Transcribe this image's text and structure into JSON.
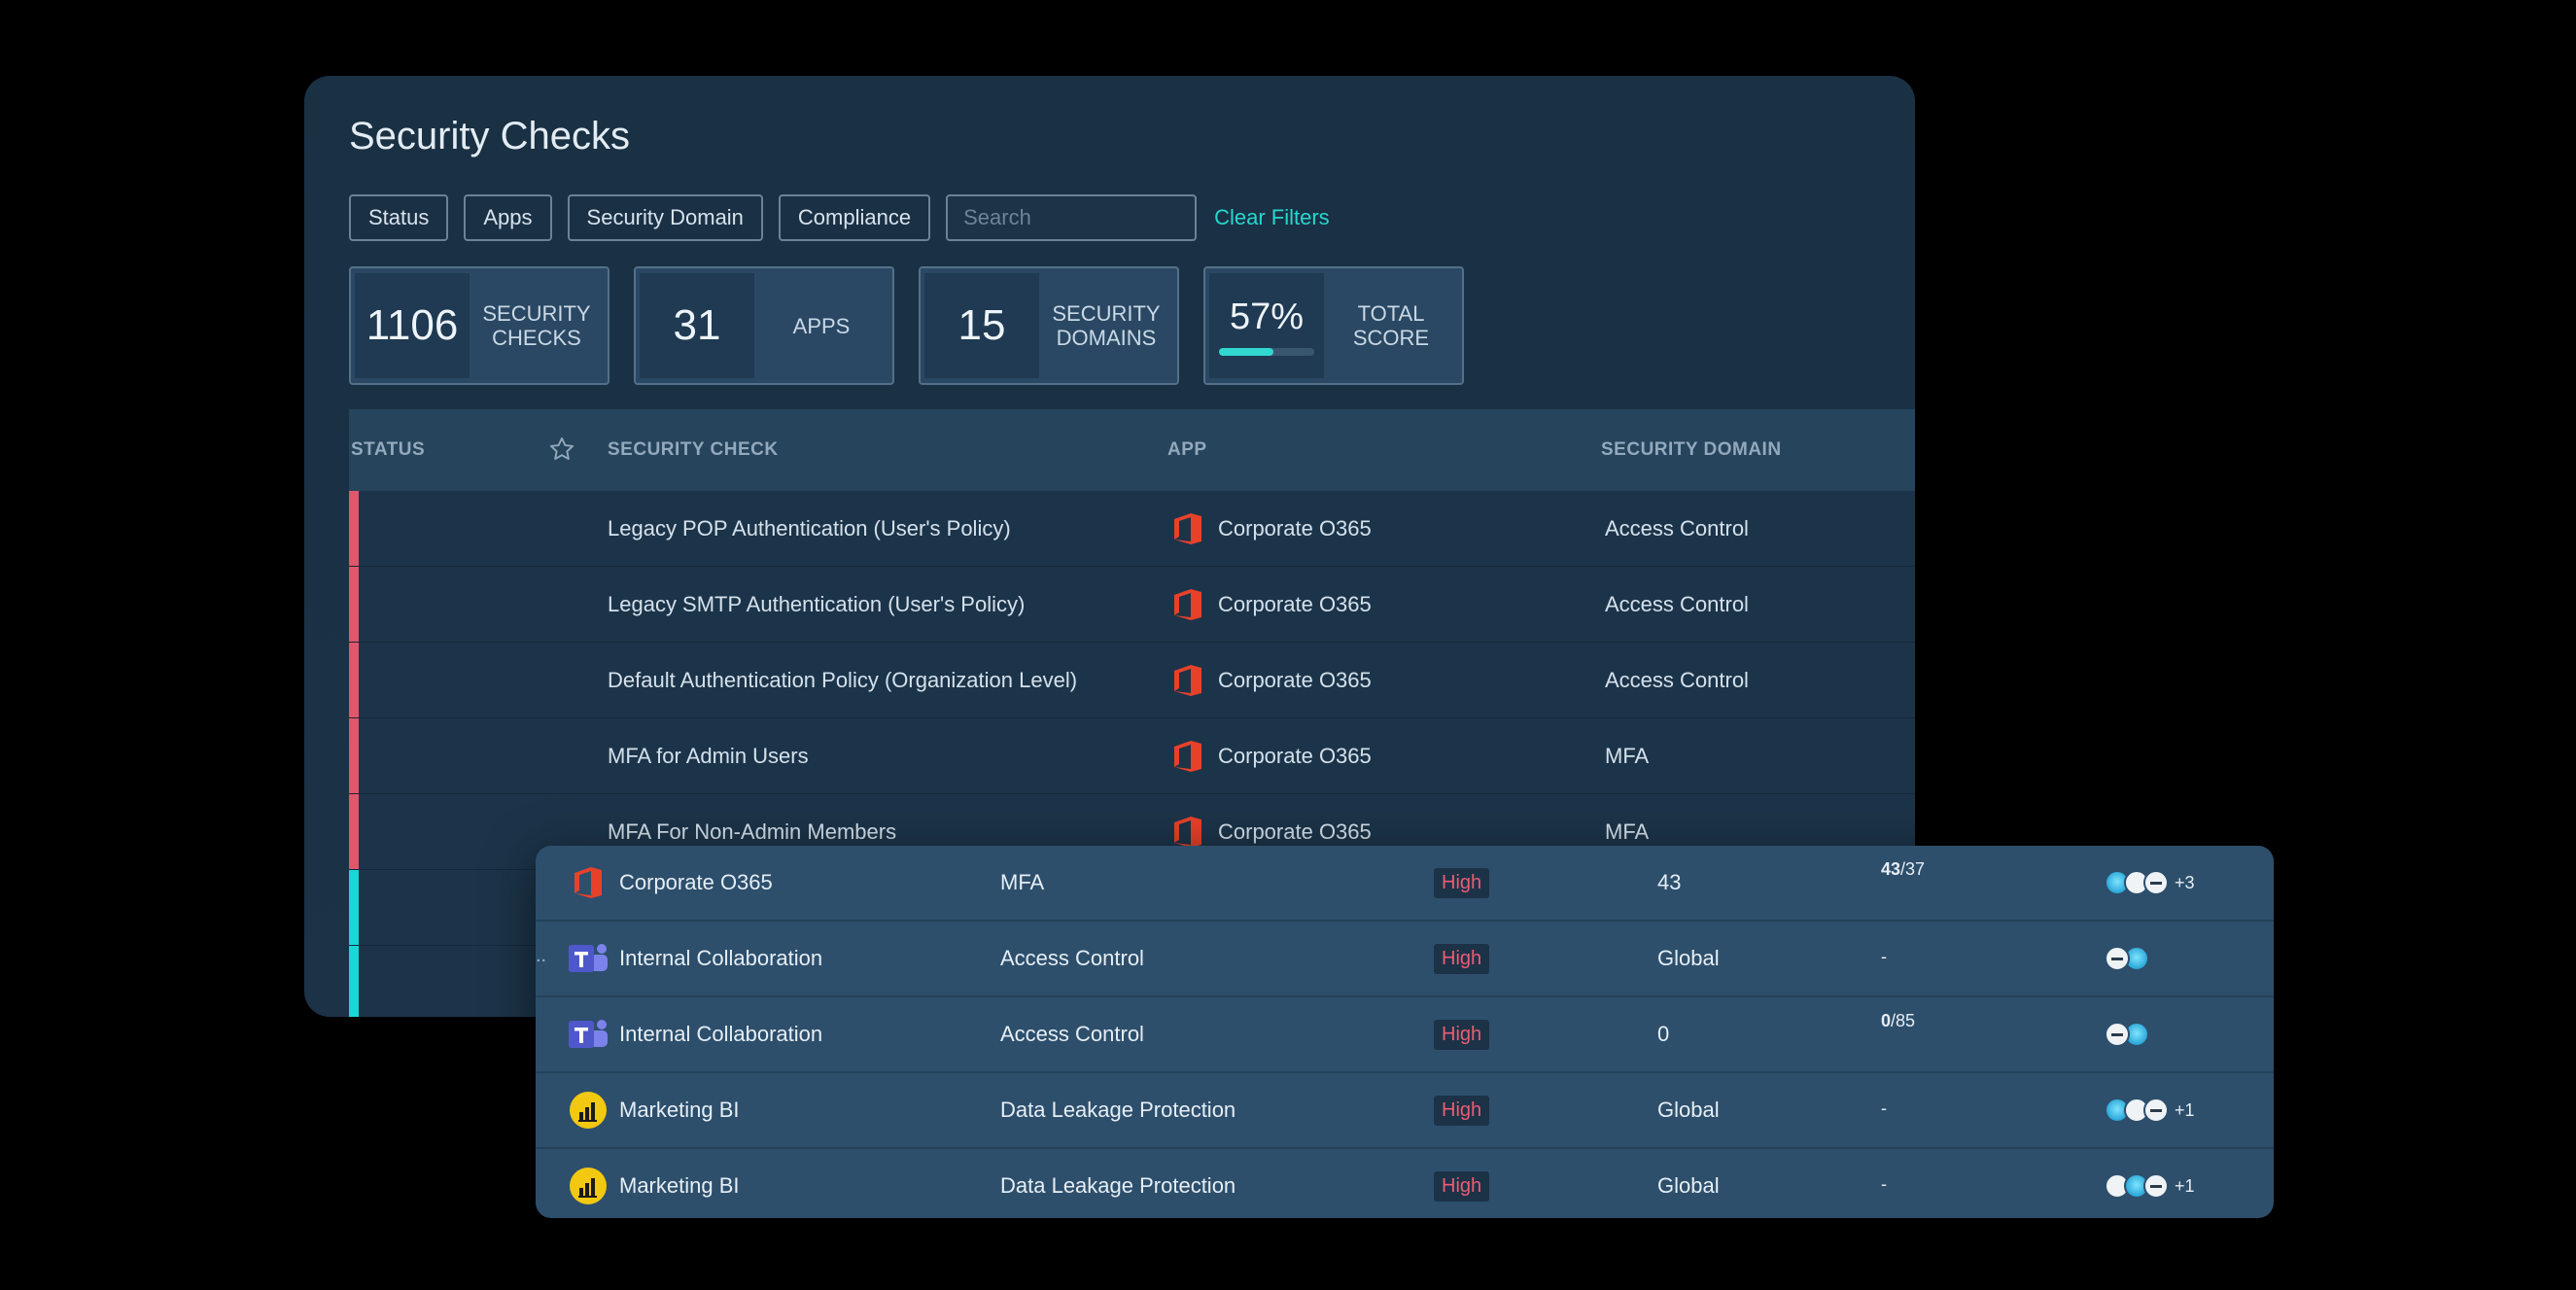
{
  "title": "Security Checks",
  "filters": [
    "Status",
    "Apps",
    "Security Domain",
    "Compliance"
  ],
  "search_placeholder": "Search",
  "clear_filters": "Clear Filters",
  "stats": [
    {
      "value": "1106",
      "label_line1": "SECURITY",
      "label_line2": "CHECKS"
    },
    {
      "value": "31",
      "label_line1": "APPS",
      "label_line2": ""
    },
    {
      "value": "15",
      "label_line1": "SECURITY",
      "label_line2": "DOMAINS"
    },
    {
      "value": "57%",
      "label_line1": "TOTAL",
      "label_line2": "SCORE",
      "progress": 0.57
    }
  ],
  "table": {
    "headers": {
      "status": "STATUS",
      "check": "SECURITY CHECK",
      "app": "APP",
      "domain": "SECURITY DOMAIN"
    },
    "rows": [
      {
        "check": "Legacy POP Authentication (User's Policy)",
        "app": "Corporate O365",
        "domain": "Access Control",
        "status_color": "#e0566a"
      },
      {
        "check": "Legacy SMTP Authentication (User's Policy)",
        "app": "Corporate O365",
        "domain": "Access Control",
        "status_color": "#e0566a"
      },
      {
        "check": "Default Authentication Policy (Organization Level)",
        "app": "Corporate O365",
        "domain": "Access Control",
        "status_color": "#e0566a"
      },
      {
        "check": "MFA for Admin Users",
        "app": "Corporate O365",
        "domain": "MFA",
        "status_color": "#e0566a"
      },
      {
        "check": "MFA For Non-Admin Members",
        "app": "Corporate O365",
        "domain": "MFA",
        "status_color": "#e0566a"
      },
      {
        "check": "",
        "app": "",
        "domain": "",
        "status_color": "#18d7d6"
      },
      {
        "check": "",
        "app": "",
        "domain": "",
        "status_color": "#18d7d6"
      }
    ]
  },
  "front_rows": [
    {
      "app": "Corporate O365",
      "icon": "office-icon",
      "domain": "MFA",
      "severity": "High",
      "scope": "43",
      "ratio_bold": "43",
      "ratio_rest": "/37",
      "more": "+3",
      "avatars": [
        "cyan",
        "white",
        "dark"
      ]
    },
    {
      "app": "Internal Collaboration",
      "icon": "teams-icon",
      "domain": "Access Control",
      "severity": "High",
      "scope": "Global",
      "ratio_bold": "",
      "ratio_rest": "-",
      "more": "",
      "avatars": [
        "dark",
        "cyan"
      ]
    },
    {
      "app": "Internal Collaboration",
      "icon": "teams-icon",
      "domain": "Access Control",
      "severity": "High",
      "scope": "0",
      "ratio_bold": "0",
      "ratio_rest": "/85",
      "more": "",
      "avatars": [
        "dark",
        "cyan"
      ]
    },
    {
      "app": "Marketing BI",
      "icon": "powerbi-icon",
      "domain": "Data Leakage Protection",
      "severity": "High",
      "scope": "Global",
      "ratio_bold": "",
      "ratio_rest": "-",
      "more": "+1",
      "avatars": [
        "cyan",
        "white",
        "dark"
      ]
    },
    {
      "app": "Marketing BI",
      "icon": "powerbi-icon",
      "domain": "Data Leakage Protection",
      "severity": "High",
      "scope": "Global",
      "ratio_bold": "",
      "ratio_rest": "-",
      "more": "+1",
      "avatars": [
        "white",
        "cyan",
        "dark"
      ]
    }
  ],
  "front_ellipsis": ".."
}
